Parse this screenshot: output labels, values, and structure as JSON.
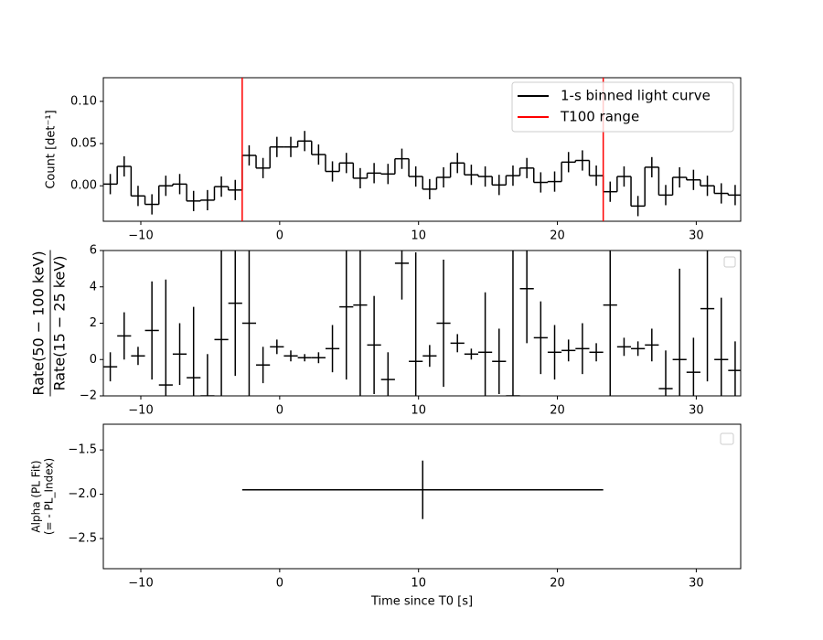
{
  "chart_data": [
    {
      "type": "step",
      "ylabel": "Count [det⁻¹]",
      "x": [
        -12.2,
        -11.2,
        -10.2,
        -9.2,
        -8.2,
        -7.2,
        -6.2,
        -5.2,
        -4.2,
        -3.2,
        -2.2,
        -1.2,
        -0.2,
        0.8,
        1.8,
        2.8,
        3.8,
        4.8,
        5.8,
        6.8,
        7.8,
        8.8,
        9.8,
        10.8,
        11.8,
        12.8,
        13.8,
        14.8,
        15.8,
        16.8,
        17.8,
        18.8,
        19.8,
        20.8,
        21.8,
        22.8,
        23.8,
        24.8,
        25.8,
        26.8,
        27.8,
        28.8,
        29.8,
        30.8,
        31.8,
        32.8
      ],
      "series": [
        {
          "name": "1-s binned light curve",
          "color": "#000000",
          "values": [
            0.002,
            0.023,
            -0.012,
            -0.022,
            0.0,
            0.002,
            -0.018,
            -0.017,
            -0.001,
            -0.005,
            0.036,
            0.021,
            0.046,
            0.046,
            0.053,
            0.037,
            0.017,
            0.027,
            0.009,
            0.015,
            0.014,
            0.032,
            0.011,
            -0.004,
            0.01,
            0.027,
            0.013,
            0.011,
            0.001,
            0.012,
            0.021,
            0.004,
            0.005,
            0.028,
            0.03,
            0.012,
            -0.007,
            0.011,
            -0.024,
            0.022,
            -0.011,
            0.01,
            0.007,
            0.0,
            -0.009,
            -0.011
          ],
          "errors": [
            0.012,
            0.012,
            0.012,
            0.012,
            0.012,
            0.012,
            0.012,
            0.012,
            0.012,
            0.012,
            0.012,
            0.012,
            0.012,
            0.012,
            0.012,
            0.012,
            0.012,
            0.012,
            0.012,
            0.012,
            0.012,
            0.012,
            0.012,
            0.012,
            0.012,
            0.012,
            0.012,
            0.012,
            0.012,
            0.012,
            0.012,
            0.012,
            0.012,
            0.012,
            0.012,
            0.012,
            0.012,
            0.012,
            0.012,
            0.012,
            0.012,
            0.012,
            0.012,
            0.012,
            0.012,
            0.012
          ]
        },
        {
          "name": "T100 range",
          "color": "#ff0000",
          "x": [
            -2.7,
            23.3
          ]
        }
      ],
      "xlim": [
        -12.7,
        33.2
      ],
      "xticks": [
        {
          "value": -10,
          "label": "−10"
        },
        0,
        10,
        20,
        30
      ],
      "ylim": [
        -0.042,
        0.128
      ],
      "yticks": [
        {
          "value": 0,
          "label": "0.00"
        },
        {
          "value": 0.05,
          "label": "0.05"
        },
        {
          "value": 0.1,
          "label": "0.10"
        }
      ],
      "legend": "upper right"
    },
    {
      "type": "errorbar",
      "ylabel": {
        "numerator": "Rate(50 − 100 keV)",
        "denominator": "Rate(15 − 25 keV)"
      },
      "x": [
        -12.2,
        -11.2,
        -10.2,
        -9.2,
        -8.2,
        -7.2,
        -6.2,
        -5.2,
        -4.2,
        -3.2,
        -2.2,
        -1.2,
        -0.2,
        0.8,
        1.8,
        2.8,
        3.8,
        4.8,
        5.8,
        6.8,
        7.8,
        8.8,
        9.8,
        10.8,
        11.8,
        12.8,
        13.8,
        14.8,
        15.8,
        16.8,
        17.8,
        18.8,
        19.8,
        20.8,
        21.8,
        22.8,
        23.8,
        24.8,
        25.8,
        26.8,
        27.8,
        28.8,
        29.8,
        30.8,
        31.8,
        32.8
      ],
      "values": [
        -0.4,
        1.3,
        0.2,
        1.6,
        -1.4,
        0.3,
        -1.0,
        -2.0,
        1.1,
        3.1,
        2.0,
        -0.3,
        0.7,
        0.2,
        0.1,
        0.1,
        0.6,
        2.9,
        3.0,
        0.8,
        -1.1,
        5.3,
        -0.1,
        0.2,
        2.0,
        0.9,
        0.3,
        0.4,
        -0.1,
        -2.0,
        3.9,
        1.2,
        0.4,
        0.5,
        0.6,
        0.4,
        3.0,
        0.7,
        0.6,
        0.8,
        -1.6,
        0.0,
        -0.7,
        2.8,
        0.0,
        -0.6
      ],
      "errors": [
        0.8,
        1.3,
        0.5,
        2.7,
        5.8,
        1.7,
        3.9,
        2.3,
        5.0,
        4.0,
        8.0,
        1.0,
        0.4,
        0.3,
        0.2,
        0.3,
        1.3,
        4.0,
        6.0,
        2.7,
        1.5,
        2.0,
        6.0,
        0.6,
        3.5,
        0.5,
        0.3,
        3.3,
        1.8,
        8.0,
        3.0,
        2.0,
        1.5,
        0.6,
        1.4,
        0.5,
        6.0,
        0.5,
        0.4,
        0.9,
        2.1,
        5.0,
        1.9,
        4.0,
        3.4,
        1.6
      ],
      "color": "#000000",
      "xlim": [
        -12.7,
        33.2
      ],
      "xticks": [
        {
          "value": -10,
          "label": "−10"
        },
        0,
        10,
        20,
        30
      ],
      "ylim": [
        -2,
        6
      ],
      "yticks": [
        {
          "value": -2,
          "label": "−2"
        },
        0,
        2,
        4,
        6
      ]
    },
    {
      "type": "errorbar",
      "ylabel": [
        "Alpha (PL Fit)",
        "(= - PL_Index)"
      ],
      "xlabel": "Time since T0 [s]",
      "x": [
        10.3
      ],
      "values": [
        -1.95
      ],
      "errors": [
        0.33
      ],
      "xerrors": [
        13.0
      ],
      "color": "#000000",
      "xlim": [
        -12.7,
        33.2
      ],
      "xticks": [
        {
          "value": -10,
          "label": "−10"
        },
        0,
        10,
        20,
        30
      ],
      "ylim": [
        -2.84,
        -1.21
      ],
      "yticks": [
        {
          "value": -2.5,
          "label": "−2.5"
        },
        {
          "value": -2.0,
          "label": "−2.0"
        },
        {
          "value": -1.5,
          "label": "−1.5"
        }
      ]
    }
  ]
}
